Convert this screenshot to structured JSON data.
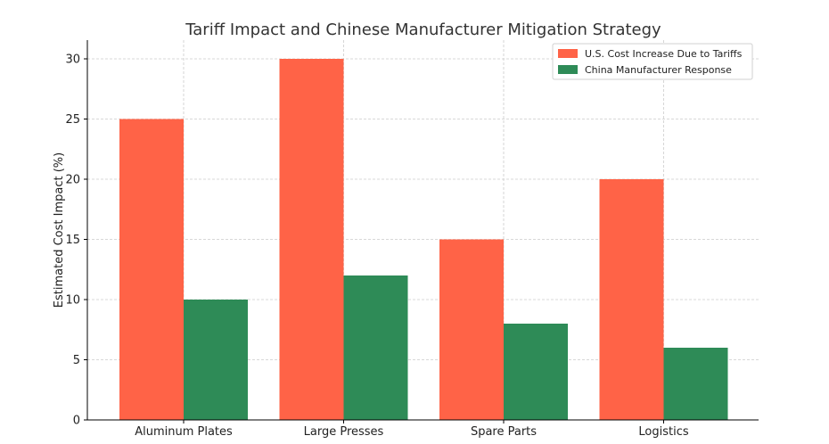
{
  "chart_data": {
    "type": "bar",
    "title": "Tariff Impact and Chinese Manufacturer Mitigation Strategy",
    "xlabel": "",
    "ylabel": "Estimated Cost Impact (%)",
    "categories": [
      "Aluminum Plates",
      "Large Presses",
      "Spare Parts",
      "Logistics"
    ],
    "series": [
      {
        "name": "U.S. Cost Increase Due to Tariffs",
        "color": "#ff6347",
        "values": [
          25,
          30,
          15,
          20
        ]
      },
      {
        "name": "China Manufacturer Response",
        "color": "#2e8b57",
        "values": [
          10,
          12,
          8,
          6
        ]
      }
    ],
    "ylim": [
      0,
      31.5
    ],
    "yticks": [
      0,
      5,
      10,
      15,
      20,
      25,
      30
    ],
    "grid": true,
    "legend_position": "top-right"
  }
}
